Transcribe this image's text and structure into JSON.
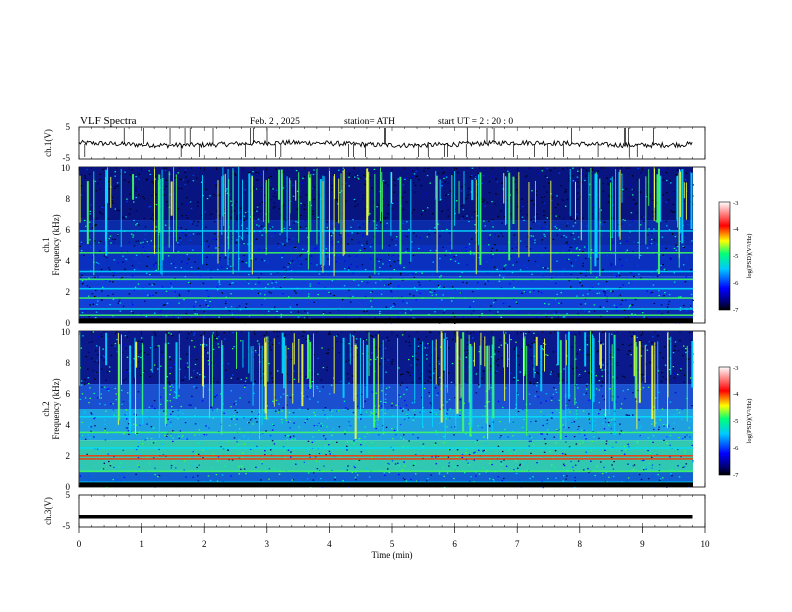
{
  "header": {
    "title": "VLF  Spectra",
    "date": "Feb. 2  , 2025",
    "station": "station= ATH",
    "start": "start  UT  =    2  : 20 : 0"
  },
  "chart_data": [
    {
      "id": "ch1-waveform",
      "type": "line",
      "ylabel": "ch.1(V)",
      "ylim": [
        -5,
        5
      ],
      "yticks": [
        "5",
        "-5"
      ],
      "xlim": [
        0,
        10
      ],
      "x_extent_min": 9.8,
      "baseline_value": -0.3,
      "line_color": "#000000"
    },
    {
      "id": "ch1-spectrogram",
      "type": "heatmap",
      "ylabel": "ch.1\nFrequency  (kHz)",
      "ylim": [
        0,
        10
      ],
      "yticks": [
        "0",
        "2",
        "4",
        "6",
        "8",
        "10"
      ],
      "xlim": [
        0,
        10
      ],
      "x_extent_min": 9.8,
      "colorbar": {
        "label": "log(PSD)(V²/Hz)",
        "range": [
          -7,
          -3
        ],
        "ticks": [
          "-3",
          "-4",
          "-5",
          "-6",
          "-7"
        ],
        "colors": [
          "#000000",
          "#0000ff",
          "#00c8ff",
          "#00ff78",
          "#ffff00",
          "#ff0000",
          "#ffffff"
        ]
      },
      "bands_khz": [
        0.2,
        0.5,
        0.9,
        1.6,
        2.2,
        2.8,
        3.3,
        4.5,
        5.9
      ]
    },
    {
      "id": "ch2-spectrogram",
      "type": "heatmap",
      "ylabel": "ch.2\nFrequency  (kHz)",
      "ylim": [
        0,
        10
      ],
      "yticks": [
        "0",
        "2",
        "4",
        "6",
        "8",
        "10"
      ],
      "xlim": [
        0,
        10
      ],
      "x_extent_min": 9.8,
      "colorbar": {
        "label": "log(PSD)(V²/Hz)",
        "range": [
          -7,
          -3
        ],
        "ticks": [
          "-3",
          "-4",
          "-5",
          "-6",
          "-7"
        ],
        "colors": [
          "#000000",
          "#0000ff",
          "#00c8ff",
          "#00ff78",
          "#ffff00",
          "#ff0000",
          "#ffffff"
        ]
      },
      "bands_khz": [
        0.3,
        1.0,
        1.8,
        2.0,
        2.5,
        3.5,
        4.5
      ]
    },
    {
      "id": "ch3-waveform",
      "type": "line",
      "ylabel": "ch.3(V)",
      "ylim": [
        -5,
        5
      ],
      "yticks": [
        "5",
        "-5"
      ],
      "xlim": [
        0,
        10
      ],
      "x_extent_min": 9.8,
      "baseline_value": -1.8,
      "line_color": "#000000"
    }
  ],
  "xaxis": {
    "label": "Time  (min)",
    "ticks": [
      "0",
      "1",
      "2",
      "3",
      "4",
      "5",
      "6",
      "7",
      "8",
      "9",
      "10"
    ],
    "range": [
      0,
      10
    ]
  }
}
